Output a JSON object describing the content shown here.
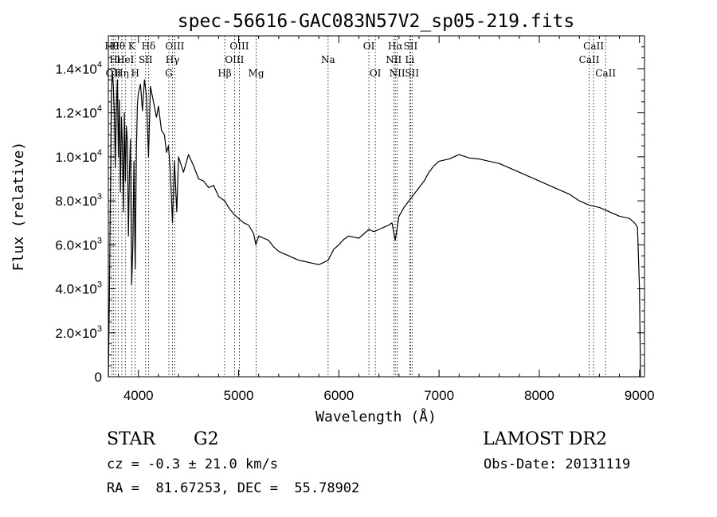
{
  "chart_data": {
    "type": "line",
    "title": "spec-56616-GAC083N57V2_sp05-219.fits",
    "xlabel": "Wavelength (Å)",
    "ylabel": "Flux (relative)",
    "xlim": [
      3700,
      9050
    ],
    "ylim": [
      0,
      15500
    ],
    "grid": false,
    "legend": "none",
    "x_ticks": [
      4000,
      5000,
      6000,
      7000,
      8000,
      9000
    ],
    "y_ticks": [
      {
        "value": 0,
        "mantissa": "0",
        "exp": ""
      },
      {
        "value": 2000,
        "mantissa": "2.0×10",
        "exp": "3"
      },
      {
        "value": 4000,
        "mantissa": "4.0×10",
        "exp": "3"
      },
      {
        "value": 6000,
        "mantissa": "6.0×10",
        "exp": "3"
      },
      {
        "value": 8000,
        "mantissa": "8.0×10",
        "exp": "3"
      },
      {
        "value": 10000,
        "mantissa": "1.0×10",
        "exp": "4"
      },
      {
        "value": 12000,
        "mantissa": "1.2×10",
        "exp": "4"
      },
      {
        "value": 14000,
        "mantissa": "1.4×10",
        "exp": "4"
      }
    ],
    "series": [
      {
        "color": "#000000",
        "x": [
          3700,
          3710,
          3720,
          3730,
          3740,
          3750,
          3760,
          3770,
          3780,
          3790,
          3800,
          3810,
          3820,
          3830,
          3840,
          3850,
          3860,
          3870,
          3880,
          3890,
          3900,
          3910,
          3920,
          3933,
          3945,
          3955,
          3968,
          3980,
          3990,
          4000,
          4020,
          4040,
          4060,
          4080,
          4101,
          4120,
          4150,
          4180,
          4200,
          4230,
          4260,
          4280,
          4300,
          4320,
          4340,
          4360,
          4383,
          4400,
          4450,
          4500,
          4550,
          4600,
          4650,
          4700,
          4750,
          4800,
          4861,
          4900,
          4950,
          5000,
          5050,
          5100,
          5150,
          5172,
          5200,
          5250,
          5300,
          5350,
          5400,
          5450,
          5500,
          5550,
          5600,
          5650,
          5700,
          5750,
          5800,
          5850,
          5893,
          5950,
          6000,
          6050,
          6100,
          6150,
          6200,
          6250,
          6300,
          6350,
          6400,
          6450,
          6500,
          6530,
          6563,
          6600,
          6650,
          6700,
          6750,
          6800,
          6850,
          6900,
          6950,
          7000,
          7100,
          7200,
          7300,
          7400,
          7500,
          7600,
          7700,
          7800,
          7900,
          8000,
          8100,
          8200,
          8300,
          8400,
          8500,
          8600,
          8700,
          8800,
          8900,
          8950,
          8980,
          9000,
          9010
        ],
        "y": [
          0,
          3500,
          8000,
          12800,
          13900,
          13200,
          12000,
          9500,
          12300,
          13500,
          10000,
          12600,
          8400,
          11800,
          10600,
          7500,
          12000,
          8900,
          11400,
          10700,
          6400,
          9200,
          10800,
          4200,
          6000,
          9800,
          4900,
          10300,
          12400,
          12900,
          13300,
          12100,
          13500,
          12800,
          10000,
          13200,
          12500,
          11800,
          12300,
          11200,
          11000,
          10200,
          10500,
          9200,
          7000,
          9800,
          7500,
          10000,
          9300,
          10100,
          9600,
          9000,
          8900,
          8600,
          8700,
          8200,
          8000,
          7700,
          7400,
          7200,
          7000,
          6900,
          6500,
          6000,
          6400,
          6300,
          6200,
          5900,
          5700,
          5600,
          5500,
          5400,
          5300,
          5250,
          5200,
          5150,
          5100,
          5200,
          5300,
          5800,
          6000,
          6250,
          6400,
          6350,
          6300,
          6500,
          6700,
          6600,
          6700,
          6800,
          6900,
          7000,
          6200,
          7300,
          7700,
          8000,
          8300,
          8600,
          8900,
          9300,
          9600,
          9800,
          9900,
          10100,
          9950,
          9900,
          9800,
          9700,
          9500,
          9300,
          9100,
          8900,
          8700,
          8500,
          8300,
          8000,
          7800,
          7700,
          7500,
          7300,
          7200,
          7000,
          6800,
          4000,
          0
        ]
      }
    ],
    "line_markers": [
      {
        "x": 3734,
        "rows": [
          {
            "row": 0,
            "text": "Hθ"
          }
        ]
      },
      {
        "x": 3750,
        "rows": [
          {
            "row": 2,
            "text": "OII"
          }
        ]
      },
      {
        "x": 3771,
        "rows": [
          {
            "row": 1,
            "text": "Hι"
          }
        ]
      },
      {
        "x": 3798,
        "rows": [
          {
            "row": 0,
            "text": "Hθ"
          }
        ]
      },
      {
        "x": 3835,
        "rows": [
          {
            "row": 2,
            "text": "Hη"
          }
        ]
      },
      {
        "x": 3869,
        "rows": [
          {
            "row": 1,
            "text": "HeI"
          }
        ]
      },
      {
        "x": 3933,
        "rows": [
          {
            "row": 0,
            "text": "K"
          }
        ]
      },
      {
        "x": 3968,
        "rows": [
          {
            "row": 2,
            "text": "H"
          }
        ]
      },
      {
        "x": 4072,
        "rows": [
          {
            "row": 1,
            "text": "SII"
          }
        ]
      },
      {
        "x": 4101,
        "rows": [
          {
            "row": 0,
            "text": "Hδ"
          }
        ]
      },
      {
        "x": 4304,
        "rows": [
          {
            "row": 2,
            "text": "G"
          }
        ]
      },
      {
        "x": 4340,
        "rows": [
          {
            "row": 1,
            "text": "Hγ"
          }
        ]
      },
      {
        "x": 4363,
        "rows": [
          {
            "row": 0,
            "text": "OIII"
          }
        ]
      },
      {
        "x": 4861,
        "rows": [
          {
            "row": 2,
            "text": "Hβ"
          }
        ]
      },
      {
        "x": 4959,
        "rows": [
          {
            "row": 1,
            "text": "OIII"
          }
        ]
      },
      {
        "x": 5007,
        "rows": [
          {
            "row": 0,
            "text": "OIII"
          }
        ]
      },
      {
        "x": 5175,
        "rows": [
          {
            "row": 2,
            "text": "Mg"
          }
        ]
      },
      {
        "x": 5893,
        "rows": [
          {
            "row": 1,
            "text": "Na"
          }
        ]
      },
      {
        "x": 6300,
        "rows": [
          {
            "row": 0,
            "text": "OI"
          }
        ]
      },
      {
        "x": 6364,
        "rows": [
          {
            "row": 2,
            "text": "OI"
          }
        ]
      },
      {
        "x": 6548,
        "rows": [
          {
            "row": 1,
            "text": "NII"
          }
        ]
      },
      {
        "x": 6563,
        "rows": [
          {
            "row": 0,
            "text": "Hα"
          }
        ]
      },
      {
        "x": 6583,
        "rows": [
          {
            "row": 2,
            "text": "NII"
          }
        ]
      },
      {
        "x": 6707,
        "rows": [
          {
            "row": 1,
            "text": "Li"
          }
        ]
      },
      {
        "x": 6716,
        "rows": [
          {
            "row": 0,
            "text": "SII"
          }
        ]
      },
      {
        "x": 6731,
        "rows": [
          {
            "row": 2,
            "text": "SII"
          }
        ]
      },
      {
        "x": 8498,
        "rows": [
          {
            "row": 1,
            "text": "CaII"
          }
        ]
      },
      {
        "x": 8542,
        "rows": [
          {
            "row": 0,
            "text": "CaII"
          }
        ]
      },
      {
        "x": 8662,
        "rows": [
          {
            "row": 2,
            "text": "CaII"
          }
        ]
      }
    ]
  },
  "footer": {
    "object_class": "STAR",
    "subclass": "G2",
    "survey": "LAMOST DR2",
    "redshift": "cz = -0.3 ± 21.0 km/s",
    "obs_date": "Obs-Date: 20131119",
    "coords": "RA =  81.67253, DEC =  55.78902"
  }
}
